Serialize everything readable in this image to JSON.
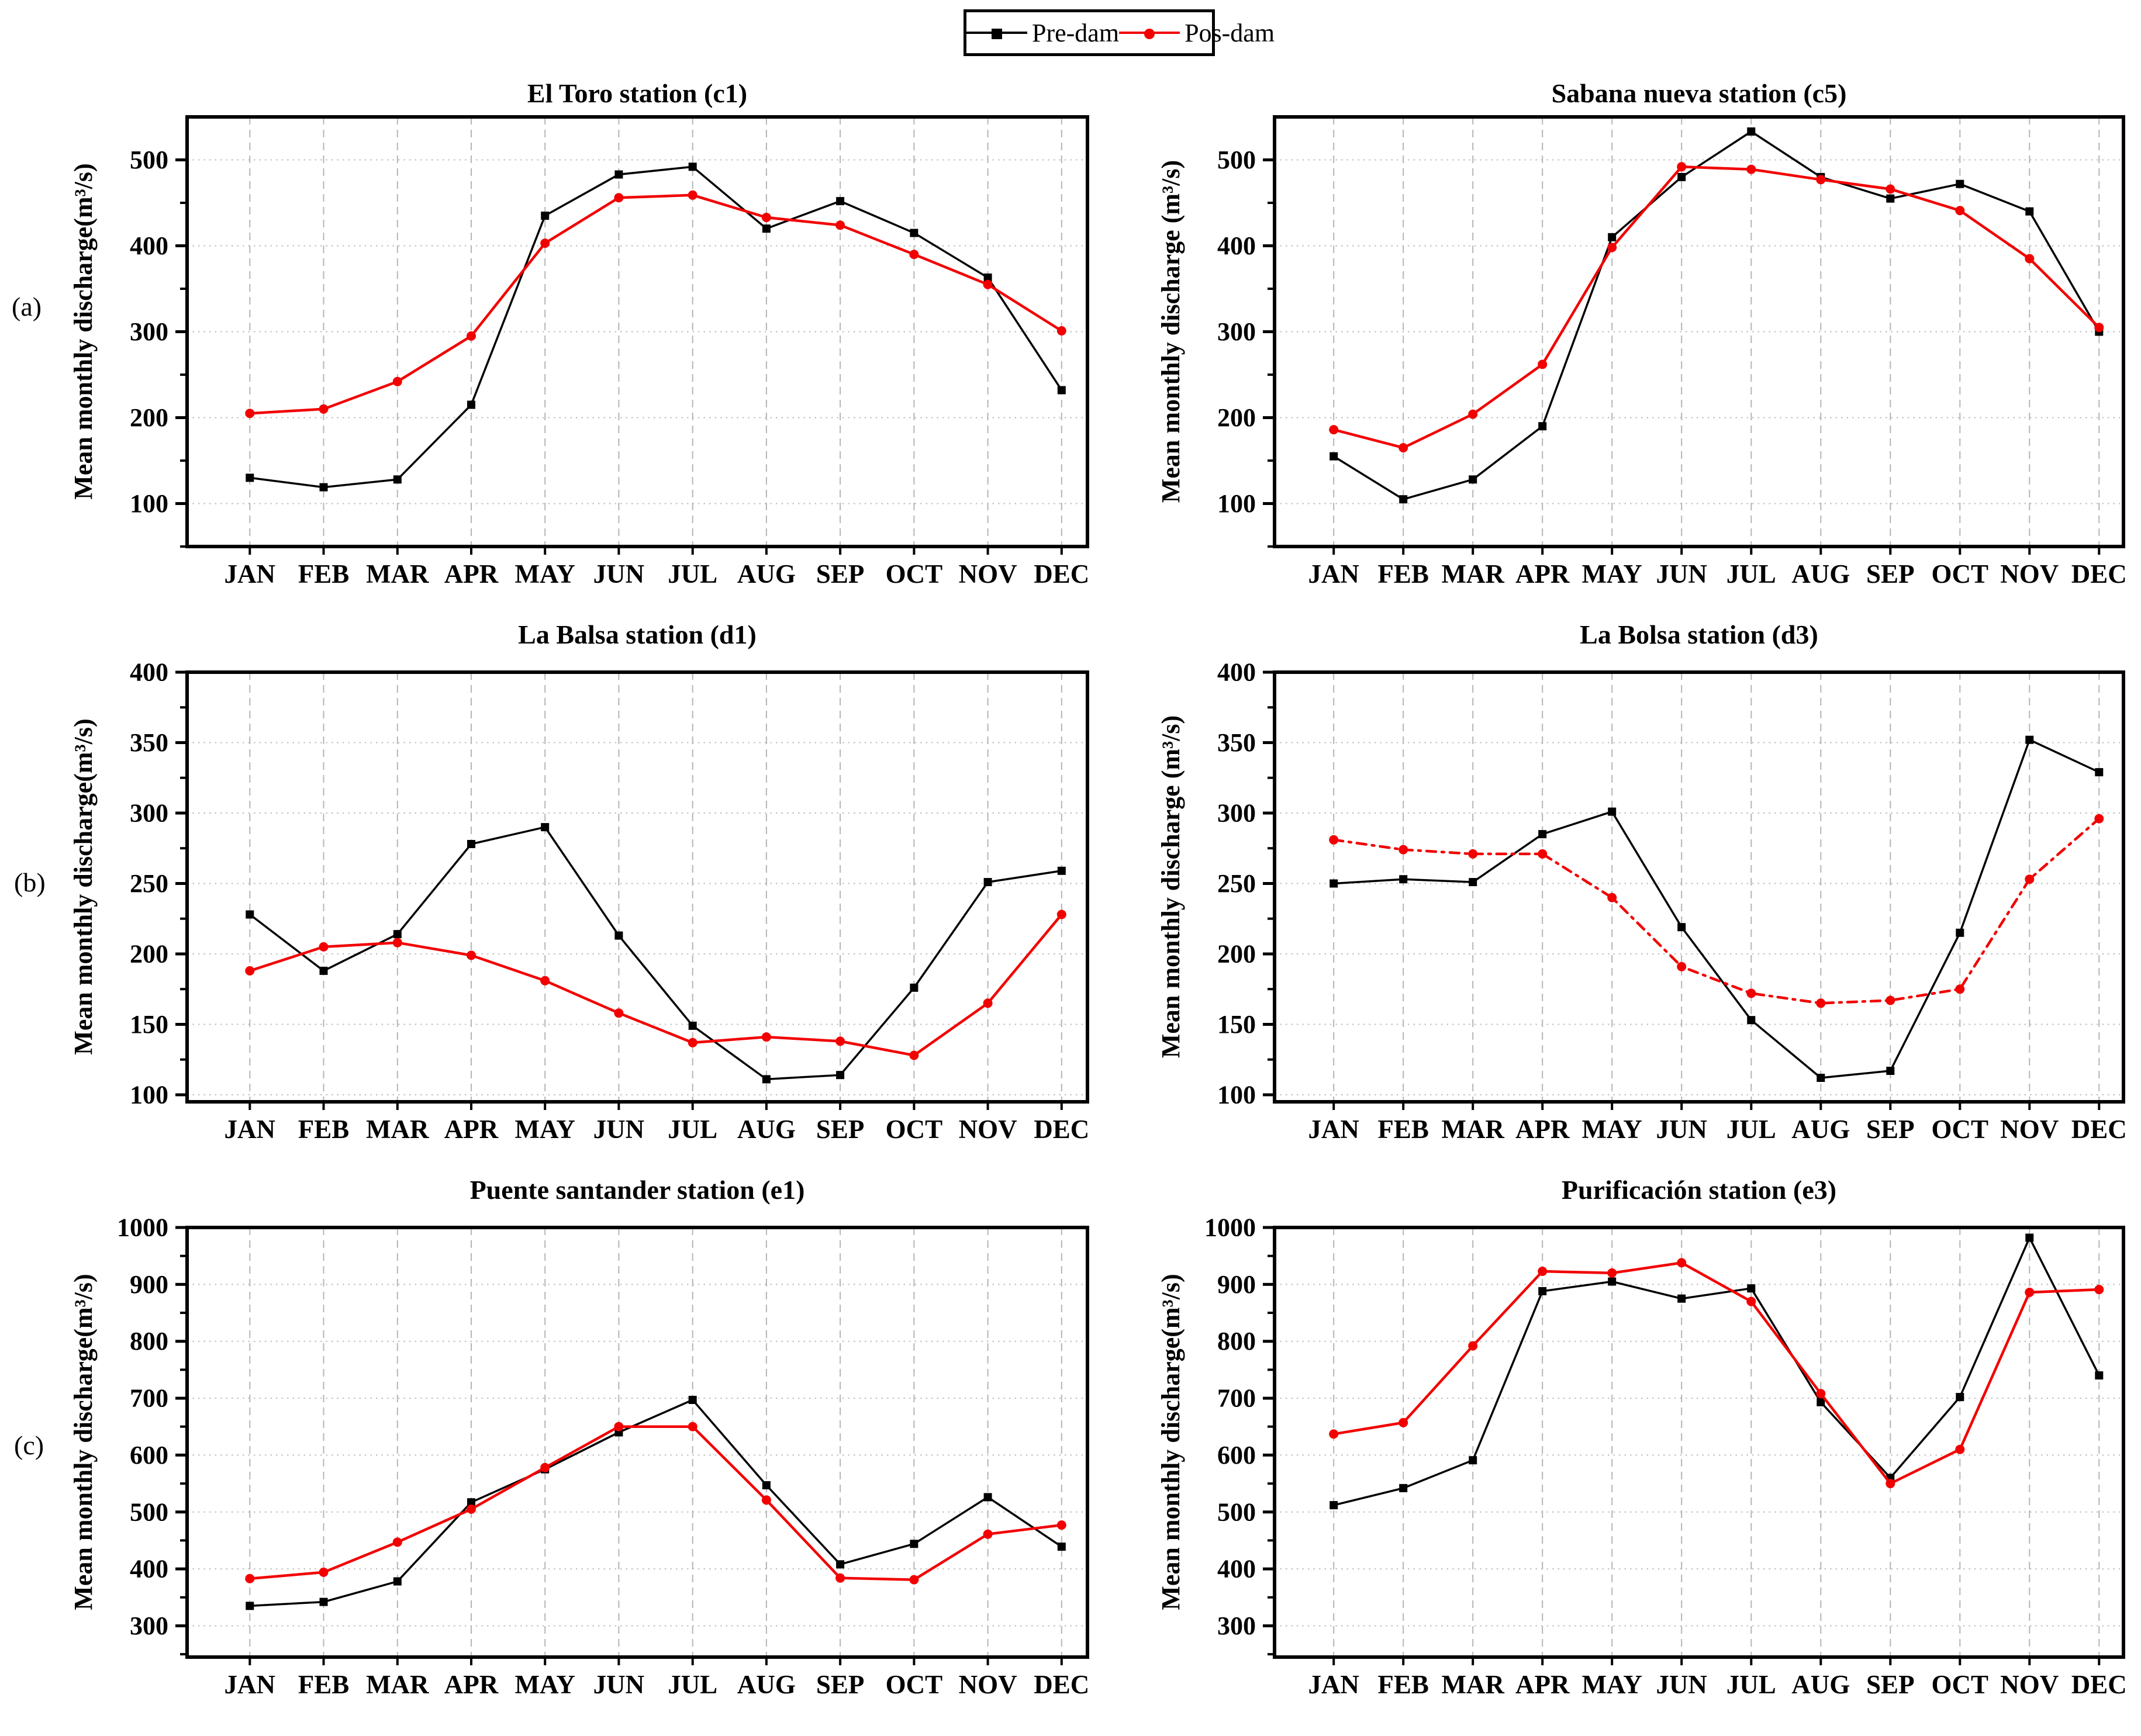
{
  "figure": {
    "background": "#ffffff",
    "row_labels": [
      "(a)",
      "(b)",
      "(c)"
    ],
    "legend": {
      "position": "top-center",
      "items": [
        {
          "label": "Pre-dam",
          "color": "#000000",
          "marker": "square"
        },
        {
          "label": "Pos-dam",
          "color": "#f20000",
          "marker": "circle"
        }
      ]
    }
  },
  "chart_data": [
    {
      "id": "c1",
      "type": "line",
      "title": "El Toro station (c1)",
      "ylabel": "Mean monthly discharge(m³/s)",
      "categories": [
        "JAN",
        "FEB",
        "MAR",
        "APR",
        "MAY",
        "JUN",
        "JUL",
        "AUG",
        "SEP",
        "OCT",
        "NOV",
        "DEC"
      ],
      "ylim": [
        50,
        550
      ],
      "yticks": [
        100,
        200,
        300,
        400,
        500
      ],
      "minor_step": 50,
      "grid": true,
      "legend_position": "top",
      "series": [
        {
          "name": "Pre-dam",
          "color": "#000000",
          "marker": "square",
          "dash": "solid",
          "values": [
            130,
            119,
            128,
            215,
            435,
            483,
            492,
            420,
            452,
            415,
            363,
            232
          ]
        },
        {
          "name": "Pos-dam",
          "color": "#f20000",
          "marker": "circle",
          "dash": "solid",
          "values": [
            205,
            210,
            242,
            295,
            403,
            456,
            459,
            433,
            424,
            390,
            355,
            301
          ]
        }
      ]
    },
    {
      "id": "c5",
      "type": "line",
      "title": "Sabana nueva station (c5)",
      "ylabel": "Mean monthly discharge (m³/s)",
      "categories": [
        "JAN",
        "FEB",
        "MAR",
        "APR",
        "MAY",
        "JUN",
        "JUL",
        "AUG",
        "SEP",
        "OCT",
        "NOV",
        "DEC"
      ],
      "ylim": [
        50,
        550
      ],
      "yticks": [
        100,
        200,
        300,
        400,
        500
      ],
      "minor_step": 50,
      "grid": true,
      "legend_position": "top",
      "series": [
        {
          "name": "Pre-dam",
          "color": "#000000",
          "marker": "square",
          "dash": "solid",
          "values": [
            155,
            105,
            128,
            190,
            410,
            480,
            533,
            480,
            455,
            472,
            440,
            300
          ]
        },
        {
          "name": "Pos-dam",
          "color": "#f20000",
          "marker": "circle",
          "dash": "solid",
          "values": [
            186,
            165,
            204,
            262,
            398,
            492,
            489,
            477,
            466,
            441,
            385,
            305
          ]
        }
      ]
    },
    {
      "id": "d1",
      "type": "line",
      "title": "La Balsa station (d1)",
      "ylabel": "Mean monthly discharge(m³/s)",
      "categories": [
        "JAN",
        "FEB",
        "MAR",
        "APR",
        "MAY",
        "JUN",
        "JUL",
        "AUG",
        "SEP",
        "OCT",
        "NOV",
        "DEC"
      ],
      "ylim": [
        95,
        400
      ],
      "yticks": [
        100,
        150,
        200,
        250,
        300,
        350,
        400
      ],
      "minor_step": 25,
      "grid": true,
      "legend_position": "top",
      "series": [
        {
          "name": "Pre-dam",
          "color": "#000000",
          "marker": "square",
          "dash": "solid",
          "values": [
            228,
            188,
            214,
            278,
            290,
            213,
            149,
            111,
            114,
            176,
            251,
            259
          ]
        },
        {
          "name": "Pos-dam",
          "color": "#f20000",
          "marker": "circle",
          "dash": "solid",
          "values": [
            188,
            205,
            208,
            199,
            181,
            158,
            137,
            141,
            138,
            128,
            165,
            228
          ]
        }
      ]
    },
    {
      "id": "d3",
      "type": "line",
      "title": "La Bolsa station (d3)",
      "ylabel": "Mean monthly discharge (m³/s)",
      "categories": [
        "JAN",
        "FEB",
        "MAR",
        "APR",
        "MAY",
        "JUN",
        "JUL",
        "AUG",
        "SEP",
        "OCT",
        "NOV",
        "DEC"
      ],
      "ylim": [
        95,
        400
      ],
      "yticks": [
        100,
        150,
        200,
        250,
        300,
        350,
        400
      ],
      "minor_step": 25,
      "grid": true,
      "legend_position": "top",
      "series": [
        {
          "name": "Pre-dam",
          "color": "#000000",
          "marker": "square",
          "dash": "solid",
          "values": [
            250,
            253,
            251,
            285,
            301,
            219,
            153,
            112,
            117,
            215,
            352,
            329
          ]
        },
        {
          "name": "Pos-dam",
          "color": "#f20000",
          "marker": "circle",
          "dash": "dashdot",
          "values": [
            281,
            274,
            271,
            271,
            240,
            191,
            172,
            165,
            167,
            175,
            253,
            296
          ]
        }
      ]
    },
    {
      "id": "e1",
      "type": "line",
      "title": "Puente santander station (e1)",
      "ylabel": "Mean monthly  discharge(m³/s)",
      "categories": [
        "JAN",
        "FEB",
        "MAR",
        "APR",
        "MAY",
        "JUN",
        "JUL",
        "AUG",
        "SEP",
        "OCT",
        "NOV",
        "DEC"
      ],
      "ylim": [
        245,
        1000
      ],
      "yticks": [
        300,
        400,
        500,
        600,
        700,
        800,
        900,
        1000
      ],
      "minor_step": 50,
      "grid": true,
      "legend_position": "top",
      "series": [
        {
          "name": "Pre-dam",
          "color": "#000000",
          "marker": "square",
          "dash": "solid",
          "values": [
            335,
            342,
            378,
            517,
            575,
            640,
            697,
            547,
            408,
            444,
            526,
            439
          ]
        },
        {
          "name": "Pos-dam",
          "color": "#f20000",
          "marker": "circle",
          "dash": "solid",
          "values": [
            383,
            394,
            447,
            505,
            578,
            650,
            650,
            521,
            384,
            381,
            461,
            477
          ]
        }
      ]
    },
    {
      "id": "e3",
      "type": "line",
      "title": "Purificación station (e3)",
      "ylabel": "Mean monthly discharge(m³/s)",
      "categories": [
        "JAN",
        "FEB",
        "MAR",
        "APR",
        "MAY",
        "JUN",
        "JUL",
        "AUG",
        "SEP",
        "OCT",
        "NOV",
        "DEC"
      ],
      "ylim": [
        245,
        1000
      ],
      "yticks": [
        300,
        400,
        500,
        600,
        700,
        800,
        900,
        1000
      ],
      "minor_step": 50,
      "grid": true,
      "legend_position": "top",
      "series": [
        {
          "name": "Pre-dam",
          "color": "#000000",
          "marker": "square",
          "dash": "solid",
          "values": [
            512,
            542,
            591,
            888,
            905,
            875,
            893,
            693,
            560,
            702,
            982,
            740
          ]
        },
        {
          "name": "Pos-dam",
          "color": "#f20000",
          "marker": "circle",
          "dash": "solid",
          "values": [
            637,
            657,
            792,
            923,
            920,
            938,
            870,
            708,
            550,
            610,
            886,
            891
          ]
        }
      ]
    }
  ]
}
